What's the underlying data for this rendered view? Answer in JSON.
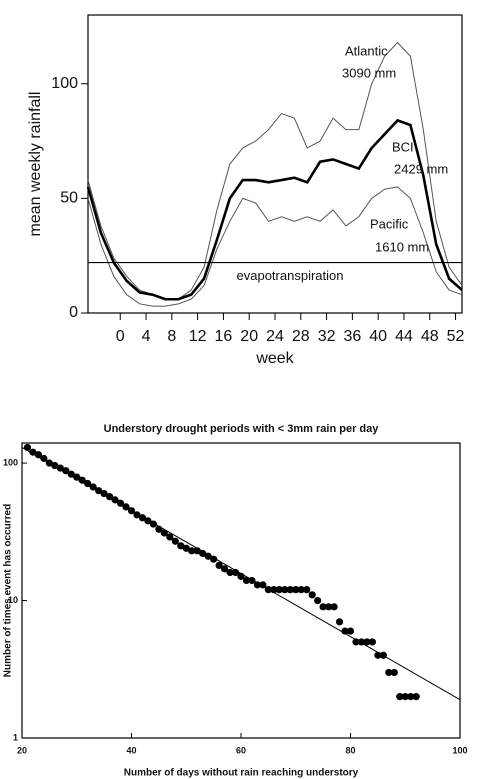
{
  "chart_data": [
    {
      "type": "line",
      "ylabel": "mean weekly rainfall",
      "xlabel": "week",
      "x": [
        -5,
        -3,
        -1,
        1,
        3,
        5,
        7,
        9,
        11,
        13,
        15,
        17,
        19,
        21,
        23,
        25,
        27,
        29,
        31,
        33,
        35,
        37,
        39,
        41,
        43,
        45,
        47,
        49,
        51,
        53
      ],
      "series": [
        {
          "name": "Atlantic",
          "total": "3090 mm",
          "color": "#555",
          "width": 1,
          "values": [
            58,
            38,
            24,
            16,
            10,
            8,
            6,
            6,
            10,
            20,
            45,
            65,
            72,
            75,
            80,
            87,
            85,
            72,
            75,
            85,
            80,
            80,
            100,
            112,
            118,
            112,
            80,
            40,
            20,
            12
          ]
        },
        {
          "name": "BCI",
          "total": "2429 mm",
          "color": "#000",
          "width": 2.6,
          "values": [
            55,
            35,
            22,
            14,
            9,
            8,
            6,
            6,
            8,
            15,
            32,
            50,
            58,
            58,
            57,
            58,
            59,
            57,
            66,
            67,
            65,
            63,
            72,
            78,
            84,
            82,
            60,
            30,
            15,
            10
          ]
        },
        {
          "name": "Pacific",
          "total": "1610 mm",
          "color": "#555",
          "width": 1,
          "values": [
            50,
            30,
            16,
            8,
            4,
            3,
            3,
            4,
            6,
            12,
            28,
            40,
            50,
            48,
            40,
            42,
            40,
            42,
            40,
            45,
            38,
            42,
            50,
            54,
            55,
            50,
            35,
            18,
            10,
            8
          ]
        }
      ],
      "hline": {
        "value": 22,
        "label": "evapotranspiration"
      },
      "xlim": [
        -5,
        53
      ],
      "xticks": [
        0,
        4,
        8,
        12,
        16,
        20,
        24,
        28,
        32,
        36,
        40,
        44,
        48,
        52
      ],
      "ylim": [
        0,
        130
      ],
      "yticks": [
        0,
        50,
        100
      ]
    },
    {
      "type": "scatter",
      "title": "Understory drought periods with < 3mm rain per day",
      "xlabel": "Number of days without rain reaching understory",
      "ylabel": "Number of times event has occurred",
      "log_y": true,
      "color": "#000",
      "x": [
        21,
        22,
        23,
        24,
        25,
        26,
        27,
        28,
        29,
        30,
        31,
        32,
        33,
        34,
        35,
        36,
        37,
        38,
        39,
        40,
        41,
        42,
        43,
        44,
        45,
        46,
        47,
        48,
        49,
        50,
        51,
        52,
        53,
        54,
        55,
        56,
        57,
        58,
        59,
        60,
        61,
        62,
        63,
        64,
        65,
        66,
        67,
        68,
        69,
        70,
        71,
        72,
        73,
        74,
        75,
        76,
        77,
        78,
        79,
        80,
        81,
        82,
        83,
        84,
        85,
        86,
        87,
        88,
        89,
        90,
        91,
        92
      ],
      "values": [
        130,
        120,
        115,
        108,
        100,
        96,
        92,
        88,
        83,
        79,
        75,
        71,
        67,
        63,
        60,
        57,
        54,
        51,
        48,
        45,
        42,
        40,
        38,
        36,
        33,
        31,
        29,
        27,
        25,
        24,
        23,
        23,
        22,
        21,
        20,
        18,
        17,
        16,
        16,
        15,
        14,
        14,
        13,
        13,
        12,
        12,
        12,
        12,
        12,
        12,
        12,
        12,
        11,
        10,
        9,
        9,
        9,
        7,
        6,
        6,
        5,
        5,
        5,
        5,
        4,
        4,
        3,
        3,
        2,
        2,
        2,
        2
      ],
      "fit": {
        "x": [
          20,
          100
        ],
        "values": [
          130,
          1.9
        ]
      },
      "xlim": [
        20,
        100
      ],
      "xticks": [
        20,
        40,
        60,
        80,
        100
      ],
      "ylim": [
        1,
        140
      ],
      "yticks": [
        1,
        10,
        100
      ]
    }
  ]
}
